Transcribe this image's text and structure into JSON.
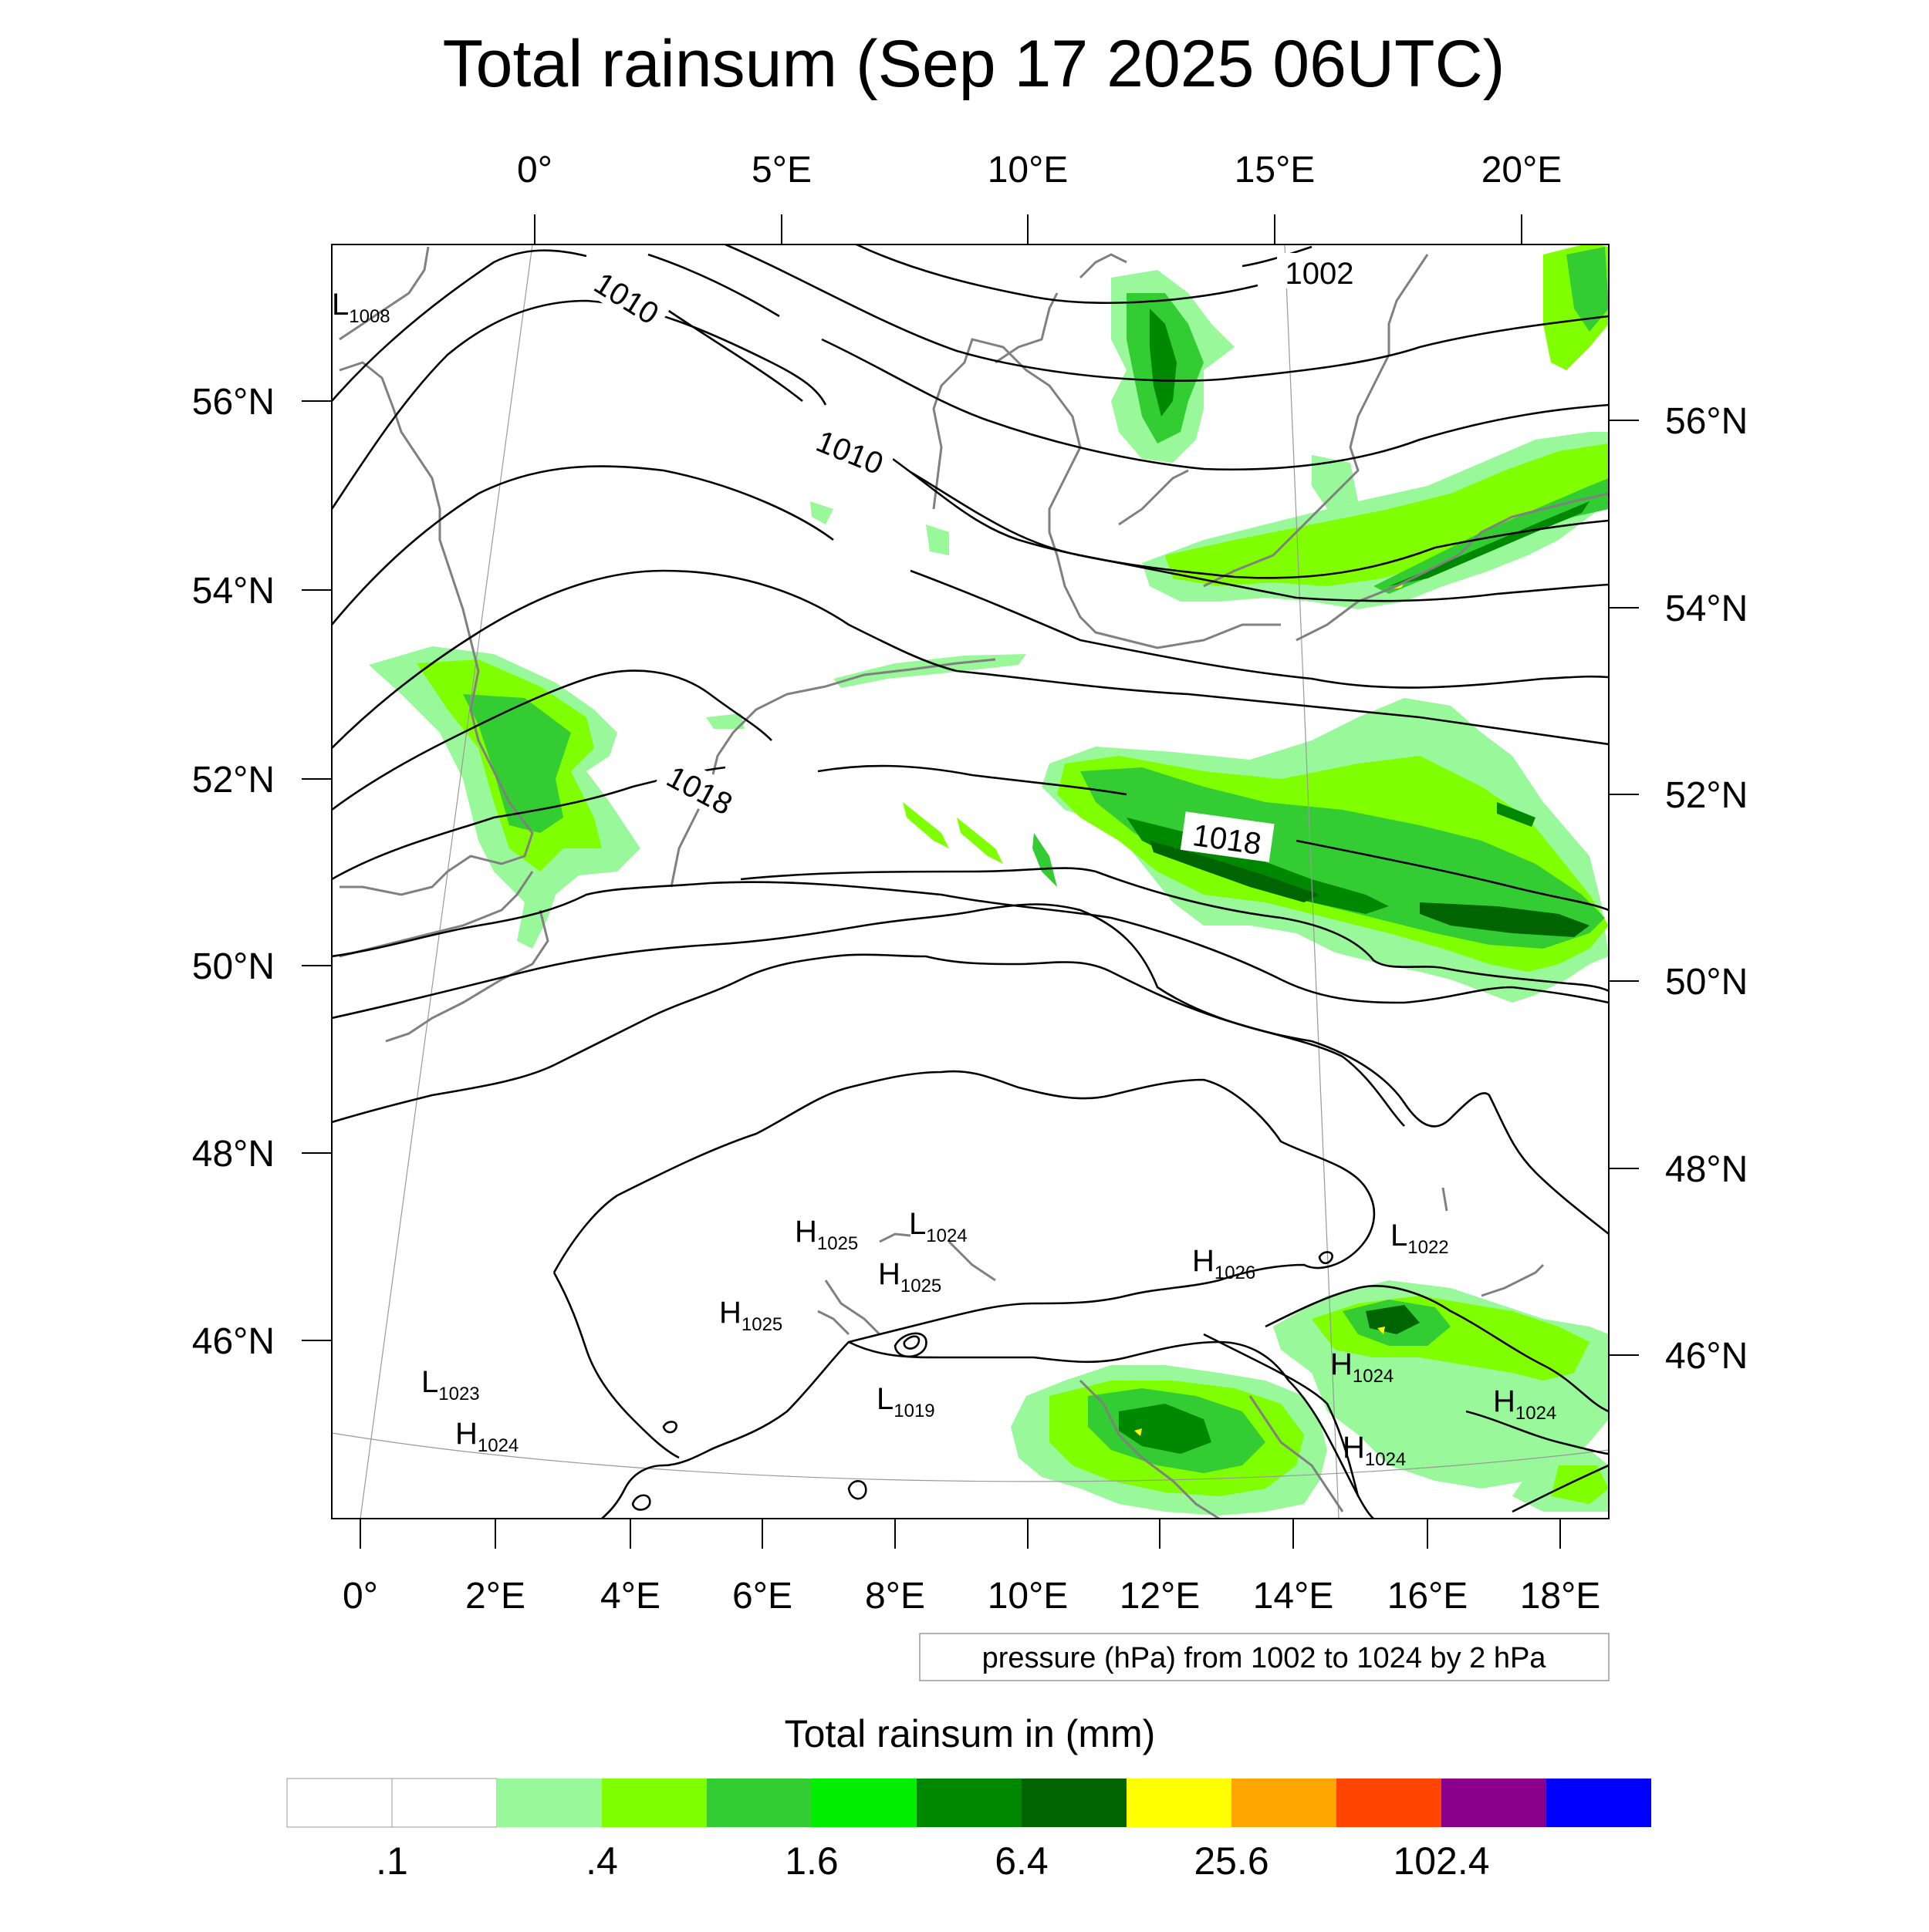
{
  "title": "Total rainsum (Sep 17 2025 06UTC)",
  "top_lon_labels": [
    "0°",
    "5°E",
    "10°E",
    "15°E",
    "20°E"
  ],
  "bottom_lon_labels": [
    "0°",
    "2°E",
    "4°E",
    "6°E",
    "8°E",
    "10°E",
    "12°E",
    "14°E",
    "16°E",
    "18°E"
  ],
  "left_lat_labels": [
    "56°N",
    "54°N",
    "52°N",
    "50°N",
    "48°N",
    "46°N"
  ],
  "right_lat_labels": [
    "56°N",
    "54°N",
    "52°N",
    "50°N",
    "48°N",
    "46°N"
  ],
  "contour_labels": [
    "1010",
    "1010",
    "1002",
    "1018",
    "1018"
  ],
  "pressure_centers": [
    {
      "kind": "L",
      "value": "1008"
    },
    {
      "kind": "H",
      "value": "1025"
    },
    {
      "kind": "L",
      "value": "1024"
    },
    {
      "kind": "H",
      "value": "1025"
    },
    {
      "kind": "H",
      "value": "1025"
    },
    {
      "kind": "H",
      "value": "1026"
    },
    {
      "kind": "L",
      "value": "1022"
    },
    {
      "kind": "L",
      "value": "1023"
    },
    {
      "kind": "H",
      "value": "1024"
    },
    {
      "kind": "L",
      "value": "1019"
    },
    {
      "kind": "H",
      "value": "1024"
    },
    {
      "kind": "H",
      "value": "1024"
    },
    {
      "kind": "H",
      "value": "1024"
    }
  ],
  "info_box": "pressure (hPa) from 1002 to 1024 by 2 hPa",
  "colorbar": {
    "title": "Total rainsum in (mm)",
    "colors": [
      "#ffffff",
      "#ffffff",
      "#99f899",
      "#80ff00",
      "#33cc33",
      "#00ee00",
      "#008800",
      "#006400",
      "#ffff00",
      "#ffa500",
      "#ff4500",
      "#8b008b",
      "#0000ff"
    ],
    "labels": [
      ".1",
      ".4",
      "1.6",
      "6.4",
      "25.6",
      "102.4"
    ]
  }
}
